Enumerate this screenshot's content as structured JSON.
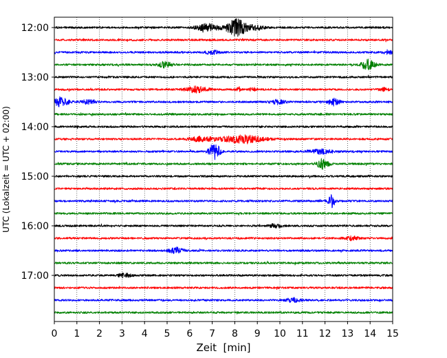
{
  "chart_data": {
    "type": "line",
    "title": "",
    "subtitle": "",
    "xlabel": "Zeit  [min]",
    "ylabel": "UTC (Lokalzeit = UTC + 02:00)",
    "xlim": [
      0,
      15
    ],
    "x_ticks": [
      0,
      1,
      2,
      3,
      4,
      5,
      6,
      7,
      8,
      9,
      10,
      11,
      12,
      13,
      14,
      15
    ],
    "y_ticks": [
      "12:00",
      "13:00",
      "14:00",
      "15:00",
      "16:00",
      "17:00"
    ],
    "grid": "vertical dotted lines at each minute",
    "trace_interval_min": 15,
    "trace_colors": [
      "#000000",
      "#ff0000",
      "#0000ff",
      "#008000"
    ],
    "traces": [
      {
        "start": "12:00",
        "color": "#000000",
        "events": [
          {
            "t": 6.8,
            "a": 5,
            "w": 0.5
          },
          {
            "t": 8.1,
            "a": 12,
            "w": 0.45
          },
          {
            "t": 9.0,
            "a": 3,
            "w": 0.3
          }
        ]
      },
      {
        "start": "12:15",
        "color": "#ff0000",
        "events": []
      },
      {
        "start": "12:30",
        "color": "#0000ff",
        "events": [
          {
            "t": 7.0,
            "a": 2.5,
            "w": 0.3
          },
          {
            "t": 14.8,
            "a": 3,
            "w": 0.2
          }
        ]
      },
      {
        "start": "12:45",
        "color": "#008000",
        "events": [
          {
            "t": 4.9,
            "a": 4,
            "w": 0.3
          },
          {
            "t": 13.9,
            "a": 7,
            "w": 0.3
          }
        ]
      },
      {
        "start": "13:00",
        "color": "#000000",
        "events": []
      },
      {
        "start": "13:15",
        "color": "#ff0000",
        "events": [
          {
            "t": 6.3,
            "a": 4,
            "w": 0.5
          },
          {
            "t": 8.2,
            "a": 3,
            "w": 0.15
          },
          {
            "t": 8.8,
            "a": 2.5,
            "w": 0.15
          },
          {
            "t": 14.6,
            "a": 2,
            "w": 0.2
          }
        ]
      },
      {
        "start": "13:30",
        "color": "#0000ff",
        "events": [
          {
            "t": 0.3,
            "a": 7,
            "w": 0.3
          },
          {
            "t": 1.5,
            "a": 3,
            "w": 0.3
          },
          {
            "t": 9.9,
            "a": 3,
            "w": 0.3
          },
          {
            "t": 12.4,
            "a": 5,
            "w": 0.25
          }
        ]
      },
      {
        "start": "13:45",
        "color": "#008000",
        "events": []
      },
      {
        "start": "14:00",
        "color": "#000000",
        "events": []
      },
      {
        "start": "14:15",
        "color": "#ff0000",
        "events": [
          {
            "t": 6.5,
            "a": 3,
            "w": 0.5
          },
          {
            "t": 8.3,
            "a": 5,
            "w": 1.0
          }
        ]
      },
      {
        "start": "14:30",
        "color": "#0000ff",
        "events": [
          {
            "t": 7.1,
            "a": 12,
            "w": 0.25
          },
          {
            "t": 11.8,
            "a": 3,
            "w": 0.5
          }
        ]
      },
      {
        "start": "14:45",
        "color": "#008000",
        "events": [
          {
            "t": 11.9,
            "a": 7,
            "w": 0.25
          }
        ]
      },
      {
        "start": "15:00",
        "color": "#000000",
        "events": []
      },
      {
        "start": "15:15",
        "color": "#ff0000",
        "events": []
      },
      {
        "start": "15:30",
        "color": "#0000ff",
        "events": [
          {
            "t": 12.3,
            "a": 9,
            "w": 0.15
          }
        ]
      },
      {
        "start": "15:45",
        "color": "#008000",
        "events": []
      },
      {
        "start": "16:00",
        "color": "#000000",
        "events": [
          {
            "t": 9.8,
            "a": 2.5,
            "w": 0.3
          }
        ]
      },
      {
        "start": "16:15",
        "color": "#ff0000",
        "events": [
          {
            "t": 13.2,
            "a": 2.5,
            "w": 0.3
          }
        ]
      },
      {
        "start": "16:30",
        "color": "#0000ff",
        "events": [
          {
            "t": 5.4,
            "a": 4,
            "w": 0.3
          }
        ]
      },
      {
        "start": "16:45",
        "color": "#008000",
        "events": []
      },
      {
        "start": "17:00",
        "color": "#000000",
        "events": [
          {
            "t": 3.1,
            "a": 2.5,
            "w": 0.3
          }
        ]
      },
      {
        "start": "17:15",
        "color": "#ff0000",
        "events": []
      },
      {
        "start": "17:30",
        "color": "#0000ff",
        "events": [
          {
            "t": 10.6,
            "a": 3,
            "w": 0.3
          }
        ]
      },
      {
        "start": "17:45",
        "color": "#008000",
        "events": []
      }
    ]
  }
}
